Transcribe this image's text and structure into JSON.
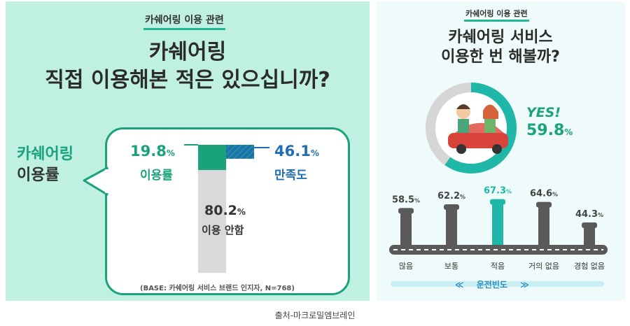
{
  "left_panel": {
    "tag": "카쉐어링 이용 관련",
    "headline_line1": "카쉐어링",
    "headline_line2": "직접 이용해본 적은 있으십니까?",
    "side_label_line1": "카쉐어링",
    "side_label_line2": "이용률",
    "base_note": "(BASE: 카쉐어링 서비스 브랜드 인지자, N=768)",
    "colors": {
      "accent": "#1aa37b",
      "blue": "#1f6fb8",
      "gray": "#d9d9d9"
    }
  },
  "right_panel": {
    "tag": "카쉐어링 이용 관련",
    "headline_line1": "카쉐어링 서비스",
    "headline_line2": "이용한 번 해볼까?",
    "yes_label": "YES!",
    "road_label": "운전빈도",
    "arrow_left": "≪",
    "arrow_right": "≫"
  },
  "source": "출처-마크로밀엠브레인",
  "chart_data": [
    {
      "type": "bar",
      "title": "",
      "series": [
        {
          "name": "이용률",
          "value": 19.8,
          "value_text": "19.8",
          "unit": "%"
        },
        {
          "name": "이용 안함",
          "value": 80.2,
          "value_text": "80.2",
          "unit": "%"
        },
        {
          "name": "만족도",
          "value": 46.1,
          "value_text": "46.1",
          "unit": "%"
        }
      ]
    },
    {
      "type": "pie",
      "slices": [
        {
          "label": "YES!",
          "value": 59.8,
          "value_text": "59.8",
          "unit": "%"
        }
      ]
    },
    {
      "type": "bar",
      "xlabel": "운전빈도",
      "categories": [
        "많음",
        "보통",
        "적음",
        "거의 없음",
        "경험 없음"
      ],
      "values": [
        58.5,
        62.2,
        67.3,
        64.6,
        44.3
      ],
      "value_texts": [
        "58.5",
        "62.2",
        "67.3",
        "64.6",
        "44.3"
      ],
      "unit": "%",
      "highlight_index": 2
    }
  ]
}
